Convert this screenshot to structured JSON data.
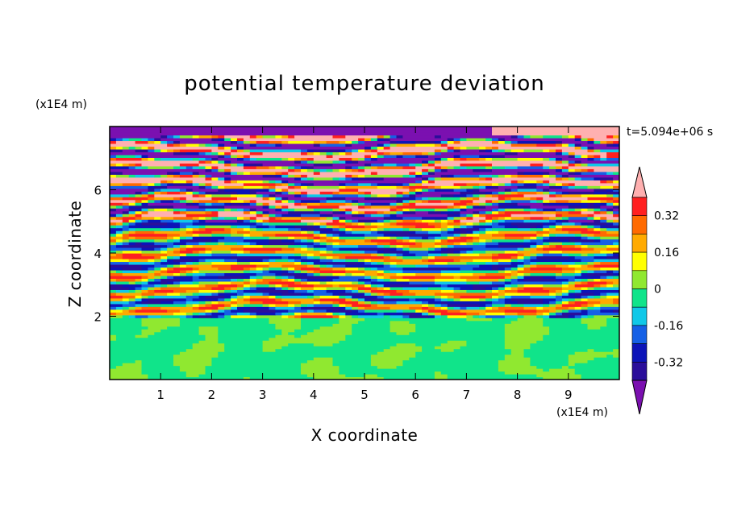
{
  "chart_data": {
    "type": "heatmap",
    "title": "potential temperature deviation",
    "xlabel": "X coordinate",
    "ylabel": "Z coordinate",
    "x_unit": "(x1E4 m)",
    "y_unit": "(x1E4 m)",
    "time_label": "t=5.094e+06 s",
    "xlim": [
      0,
      10
    ],
    "ylim": [
      0,
      8
    ],
    "x_ticks": [
      1,
      2,
      3,
      4,
      5,
      6,
      7,
      8,
      9
    ],
    "y_ticks": [
      2,
      4,
      6
    ],
    "colorbar": {
      "levels": [
        -0.48,
        -0.4,
        -0.32,
        -0.24,
        -0.16,
        -0.08,
        0,
        0.08,
        0.16,
        0.24,
        0.32,
        0.4,
        0.48
      ],
      "colors": [
        "#7b10b0",
        "#2a0e9a",
        "#0c14b8",
        "#1560e6",
        "#10c8e8",
        "#10e48a",
        "#90e830",
        "#ffff00",
        "#ffaa00",
        "#ff6a00",
        "#ff2020",
        "#ffb0b0"
      ],
      "tick_labels": [
        "-0.32",
        "-0.16",
        "0",
        "0.16",
        "0.32"
      ],
      "extend": "both"
    }
  }
}
